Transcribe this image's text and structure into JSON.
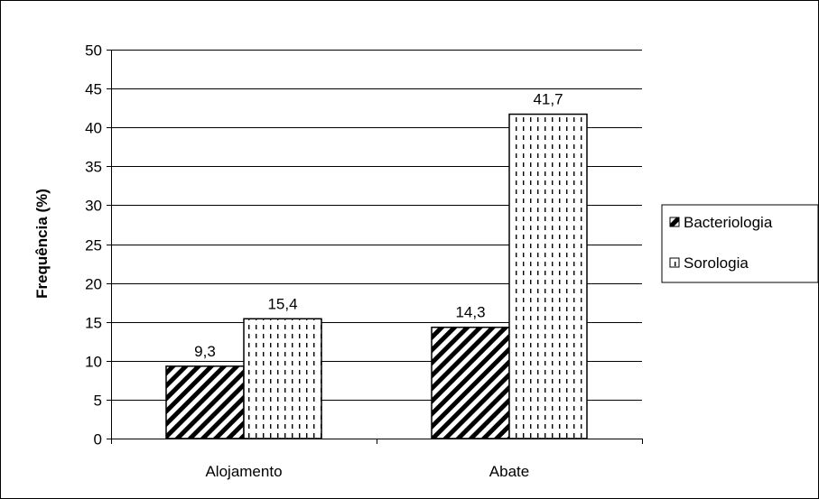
{
  "chart_data": {
    "type": "bar",
    "categories": [
      "Alojamento",
      "Abate"
    ],
    "series": [
      {
        "name": "Bacteriologia",
        "values": [
          9.3,
          14.3
        ],
        "labels": [
          "9,3",
          "14,3"
        ],
        "pattern": "diagonal-hatch"
      },
      {
        "name": "Sorologia",
        "values": [
          15.4,
          41.7
        ],
        "labels": [
          "15,4",
          "41,7"
        ],
        "pattern": "dashed-vertical"
      }
    ],
    "ylabel": "Frequência (%)",
    "ylim": [
      0,
      50
    ],
    "yticks": [
      0,
      5,
      10,
      15,
      20,
      25,
      30,
      35,
      40,
      45,
      50
    ],
    "grid": true,
    "legend_position": "right",
    "colors": {
      "bar_fill": "#ffffff",
      "stroke": "#000000",
      "grid": "#000000"
    }
  }
}
